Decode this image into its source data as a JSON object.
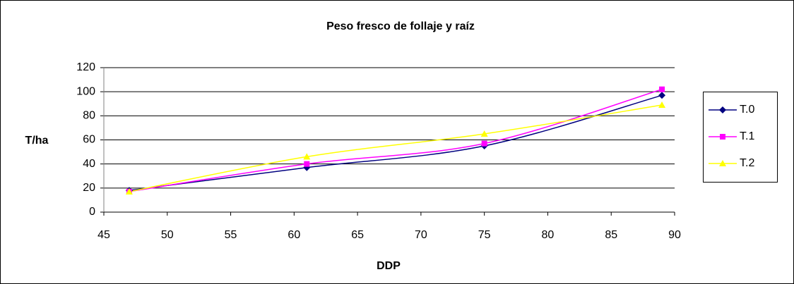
{
  "chart_data": {
    "type": "line",
    "title": "Peso fresco de follaje y raíz",
    "x_label": "DDP",
    "y_label": "T/ha",
    "x": [
      47,
      61,
      75,
      89
    ],
    "series": [
      {
        "name": "T.0",
        "color": "#000080",
        "marker": "diamond",
        "values": [
          18,
          37,
          55,
          97
        ]
      },
      {
        "name": "T.1",
        "color": "#ff00ff",
        "marker": "square",
        "values": [
          17,
          40,
          57,
          102
        ]
      },
      {
        "name": "T.2",
        "color": "#ffff00",
        "marker": "triangle",
        "values": [
          17,
          46,
          65,
          89
        ]
      }
    ],
    "xlim": [
      45,
      90
    ],
    "xticks": [
      45,
      50,
      55,
      60,
      65,
      70,
      75,
      80,
      85,
      90
    ],
    "ylim": [
      0,
      120
    ],
    "yticks": [
      0,
      20,
      40,
      60,
      80,
      100,
      120
    ],
    "grid": true,
    "legend": "right"
  }
}
